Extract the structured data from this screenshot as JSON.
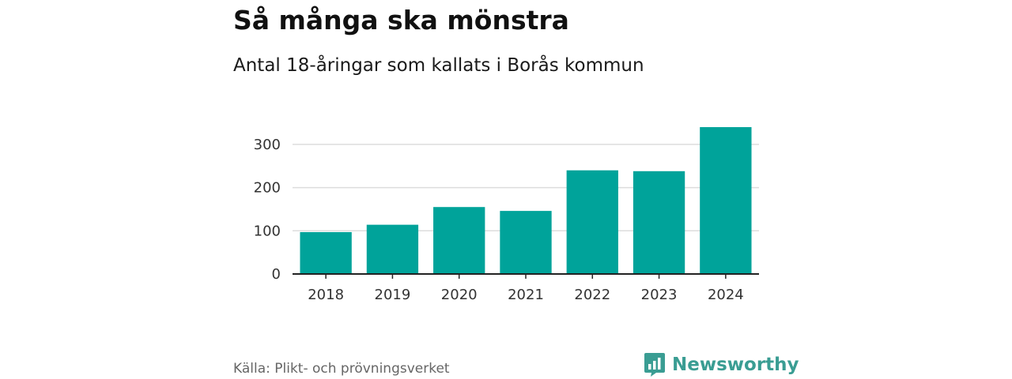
{
  "header": {
    "title": "Så många ska mönstra",
    "subtitle": "Antal 18-åringar som kallats i Borås kommun"
  },
  "chart_data": {
    "type": "bar",
    "categories": [
      "2018",
      "2019",
      "2020",
      "2021",
      "2022",
      "2023",
      "2024"
    ],
    "values": [
      97,
      114,
      155,
      146,
      240,
      238,
      340
    ],
    "xlabel": "",
    "ylabel": "",
    "ylim": [
      0,
      340
    ],
    "yticks": [
      0,
      100,
      200,
      300
    ],
    "grid": true,
    "bar_color": "#00a39a",
    "grid_color": "#dddddd",
    "axis_color": "#222222"
  },
  "footer": {
    "source": "Källa: Plikt- och prövningsverket",
    "brand_name": "Newsworthy",
    "brand_icon": "newsworthy-logo-icon",
    "brand_color": "#3a9d93"
  }
}
